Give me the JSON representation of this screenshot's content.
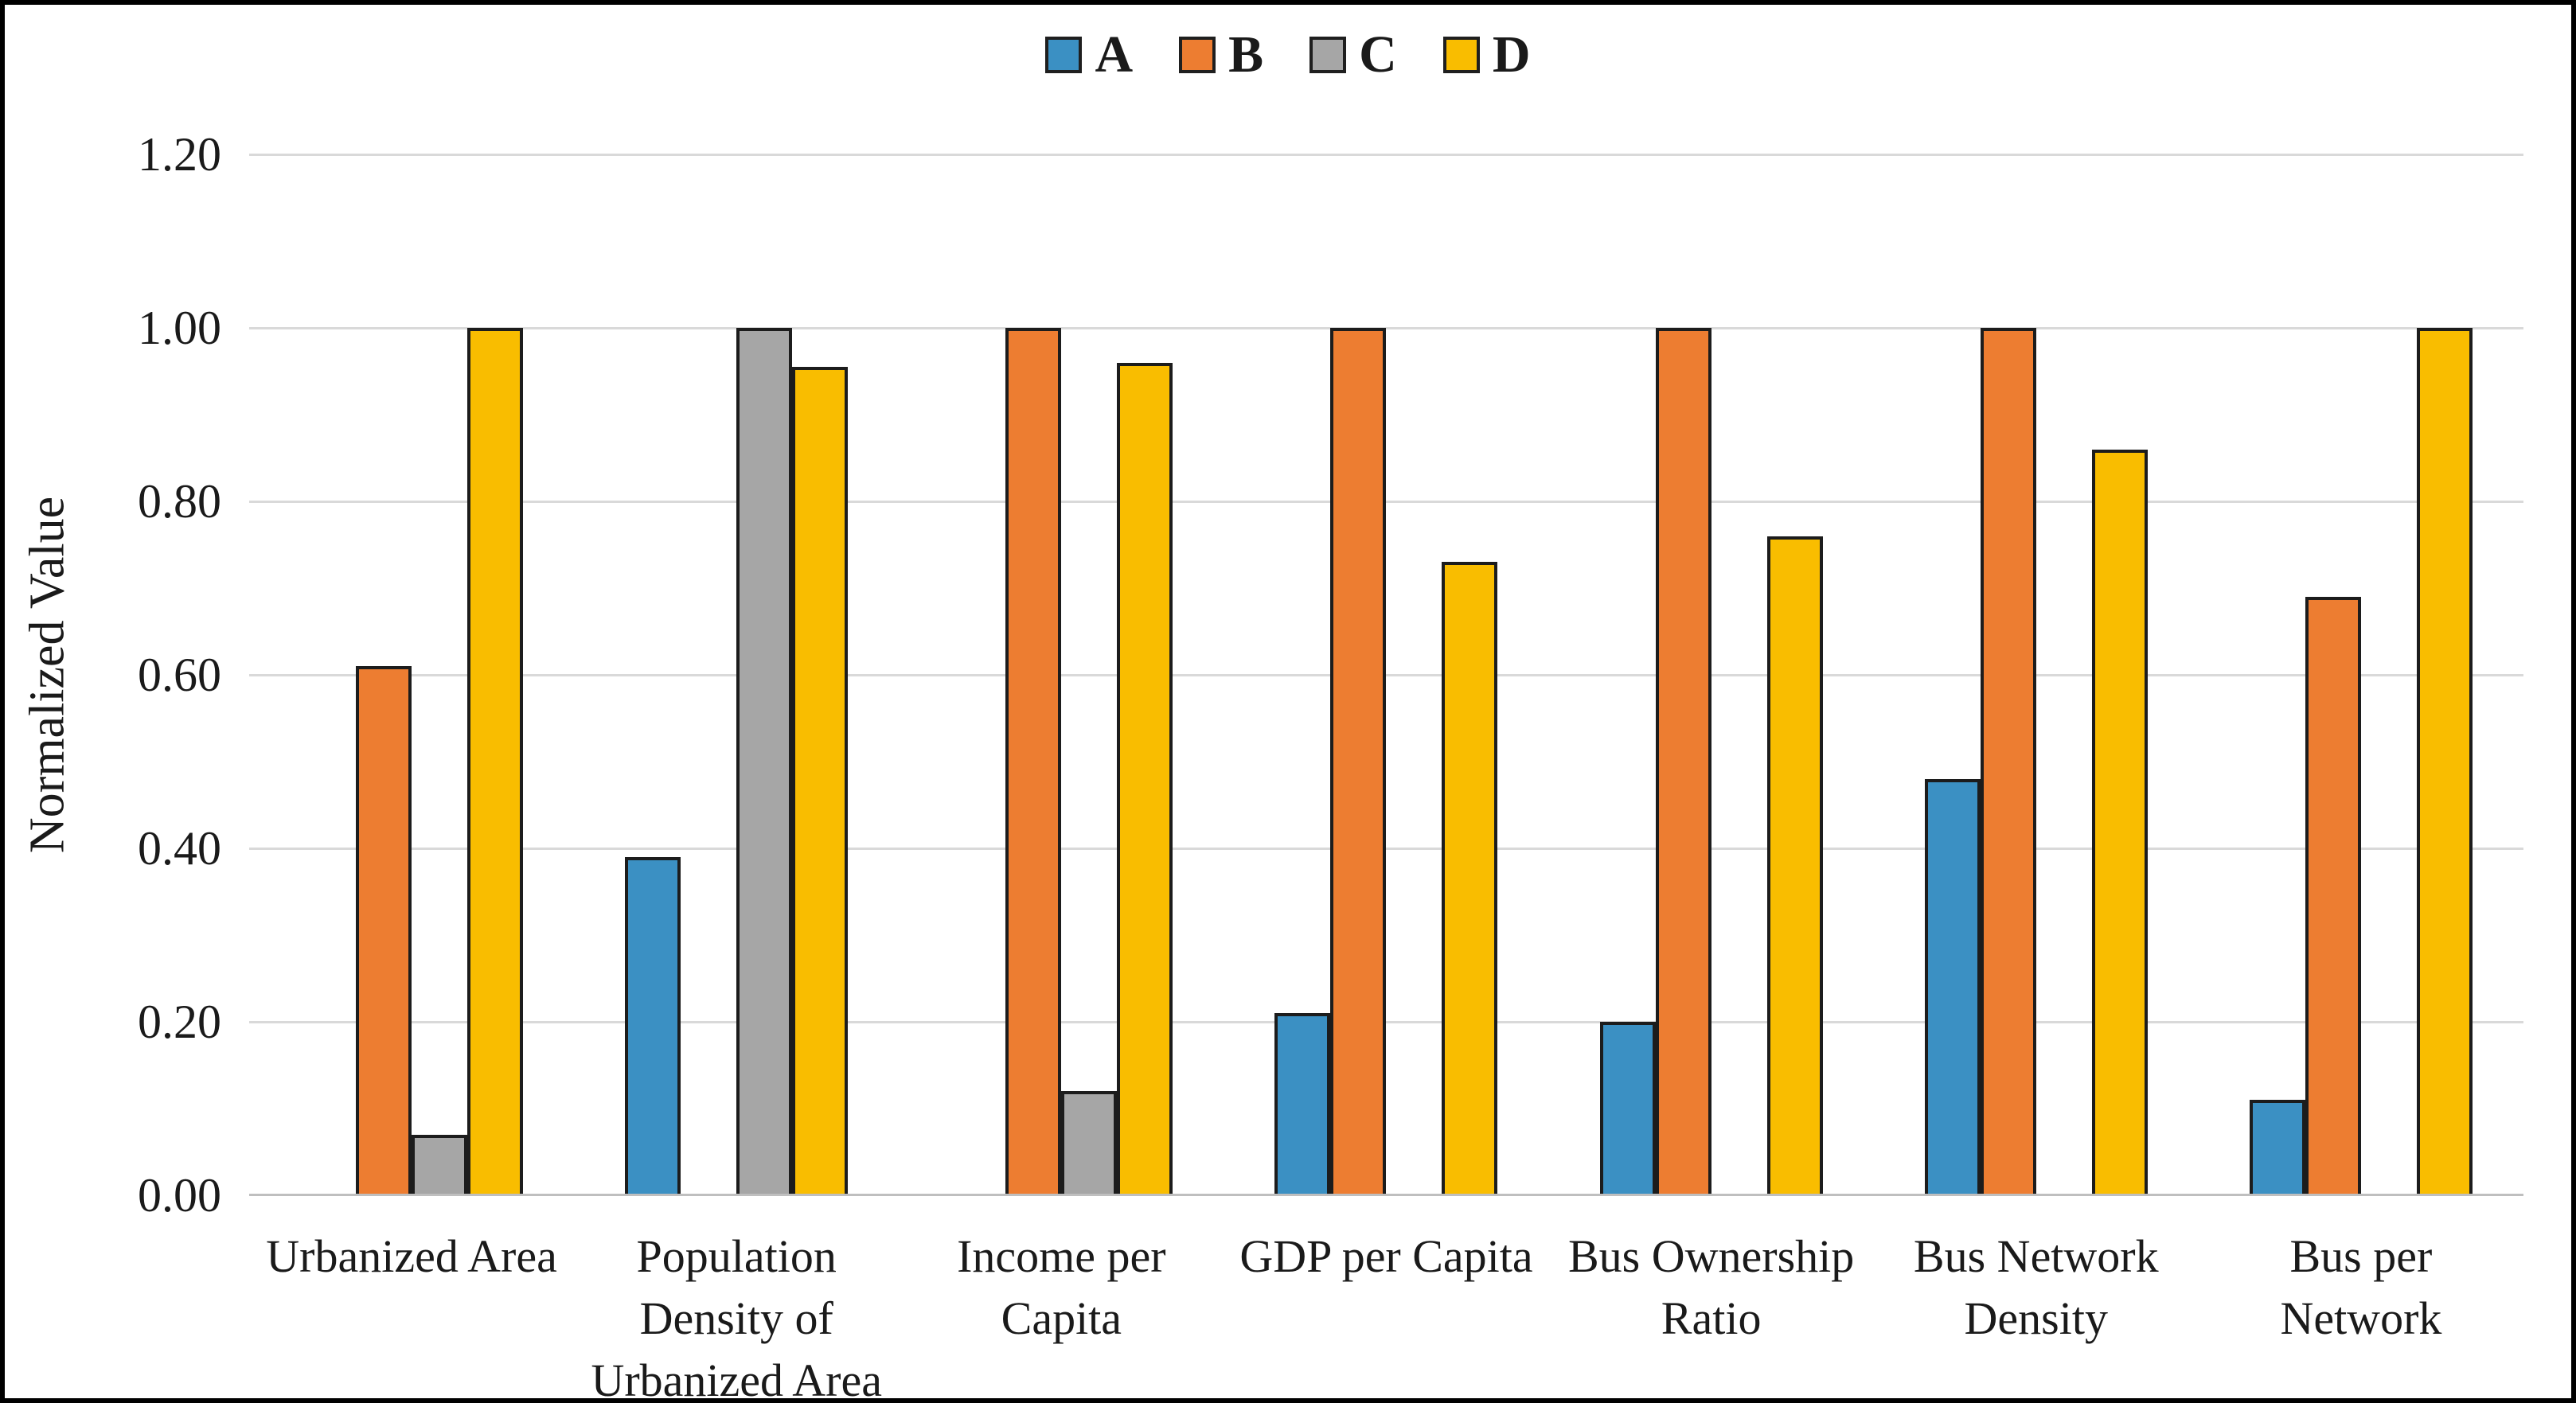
{
  "figure": {
    "background": "#ffffff",
    "border_color": "#000000",
    "text_color": "#1a1a1a",
    "gridline_color": "#d9d9d9",
    "axis_line_color": "#bfbfbf",
    "bar_outline_color": "#1c1c1c"
  },
  "legend": {
    "position": "top-center",
    "items": [
      {
        "label": "A",
        "color": "#3b90c3"
      },
      {
        "label": "B",
        "color": "#ed7d31"
      },
      {
        "label": "C",
        "color": "#a6a6a6"
      },
      {
        "label": "D",
        "color": "#f9bd00"
      }
    ]
  },
  "y_axis": {
    "title": "Normalized Value",
    "ticks": [
      "0.00",
      "0.20",
      "0.40",
      "0.60",
      "0.80",
      "1.00",
      "1.20"
    ]
  },
  "x_axis": {
    "labels": [
      "Urbanized Area",
      "Population\nDensity of\nUrbanized Area",
      "Income per\nCapita",
      "GDP per Capita",
      "Bus Ownership\nRatio",
      "Bus Network\nDensity",
      "Bus per\nNetwork"
    ]
  },
  "chart_data": {
    "type": "bar",
    "title": "",
    "xlabel": "",
    "ylabel": "Normalized Value",
    "ylim": [
      0,
      1.2
    ],
    "ytick_step": 0.2,
    "grid": true,
    "legend_position": "top-center",
    "categories": [
      "Urbanized Area",
      "Population Density of Urbanized Area",
      "Income per Capita",
      "GDP per Capita",
      "Bus Ownership Ratio",
      "Bus Network Density",
      "Bus per Network"
    ],
    "series": [
      {
        "name": "A",
        "color": "#3b90c3",
        "values": [
          0,
          0.39,
          0,
          0.21,
          0.2,
          0.48,
          0.11
        ]
      },
      {
        "name": "B",
        "color": "#ed7d31",
        "values": [
          0.61,
          0,
          1.0,
          1.0,
          1.0,
          1.0,
          0.69
        ]
      },
      {
        "name": "C",
        "color": "#a6a6a6",
        "values": [
          0.07,
          1.0,
          0.12,
          0,
          0,
          0,
          0
        ]
      },
      {
        "name": "D",
        "color": "#f9bd00",
        "values": [
          1.0,
          0.955,
          0.96,
          0.73,
          0.76,
          0.86,
          1.0
        ]
      }
    ]
  }
}
